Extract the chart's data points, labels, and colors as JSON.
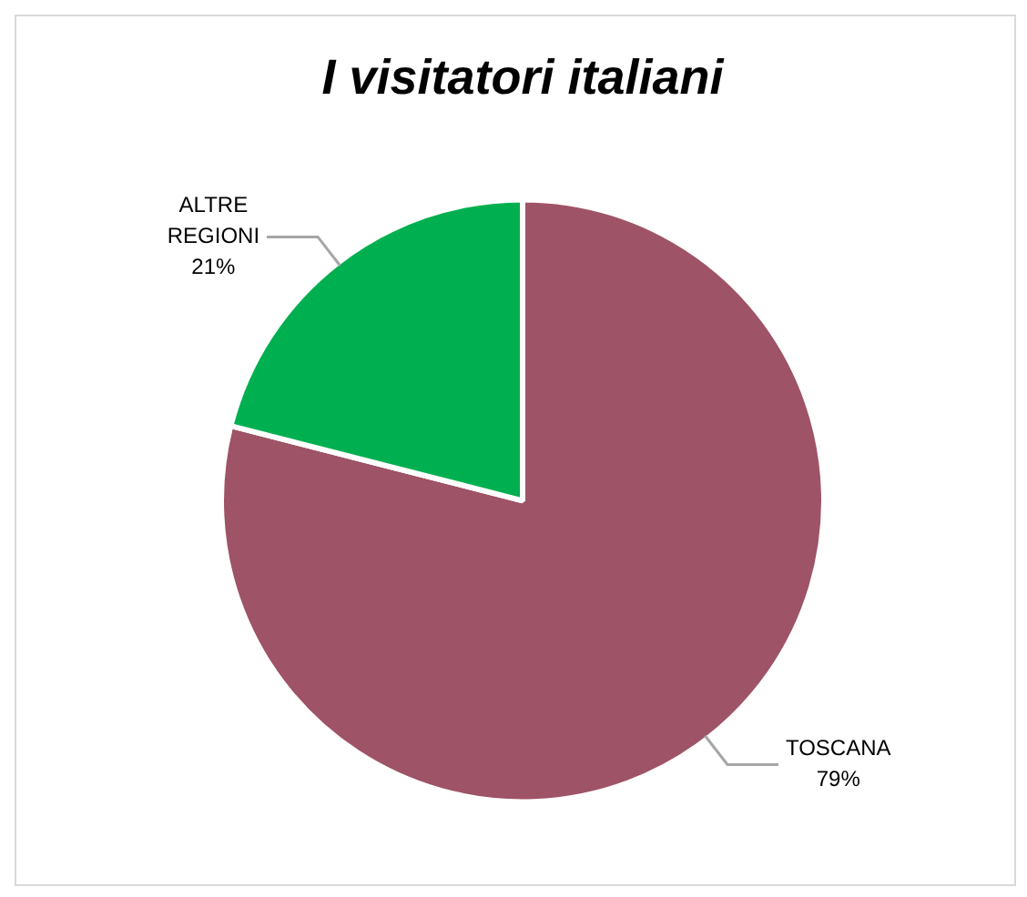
{
  "chart_data": {
    "type": "pie",
    "title": "I visitatori italiani",
    "categories": [
      "TOSCANA",
      "ALTRE REGIONI"
    ],
    "values": [
      79,
      21
    ],
    "colors": [
      "#9e5366",
      "#00b050"
    ],
    "value_labels": [
      "79%",
      "21%"
    ],
    "legend": false
  }
}
